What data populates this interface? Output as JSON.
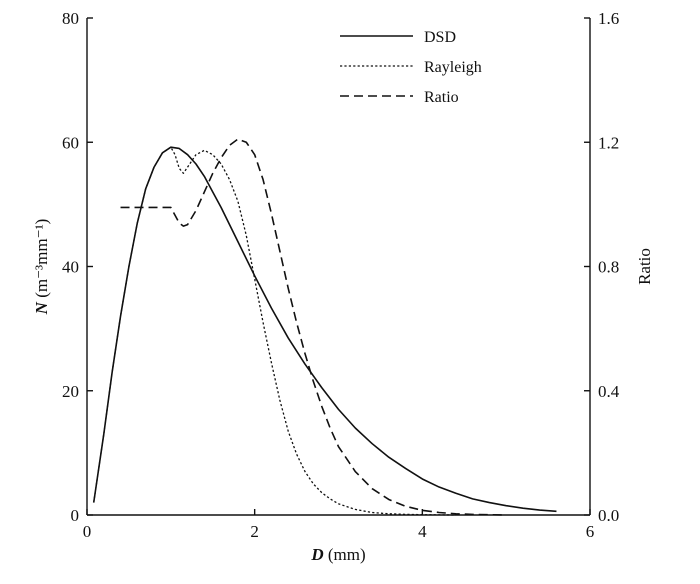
{
  "chart_data": {
    "type": "line",
    "xlabel": {
      "var": "D",
      "unit": "(mm)"
    },
    "ylabel_left": {
      "var": "N",
      "unit": "(m⁻³mm⁻¹)"
    },
    "ylabel_right": "Ratio",
    "xlim": [
      0,
      6
    ],
    "ylim_left": [
      0,
      80
    ],
    "ylim_right": [
      0,
      1.6
    ],
    "x_ticks": [
      "0",
      "2",
      "4",
      "6"
    ],
    "y_left_ticks": [
      "0",
      "20",
      "40",
      "60",
      "80"
    ],
    "y_right_ticks": [
      "0.0",
      "0.4",
      "0.8",
      "1.2",
      "1.6"
    ],
    "grid": false,
    "legend_position": "top-right",
    "series": [
      {
        "name": "DSD",
        "axis": "left",
        "style": "solid",
        "x": [
          0.08,
          0.2,
          0.3,
          0.4,
          0.5,
          0.6,
          0.7,
          0.8,
          0.9,
          1.0,
          1.1,
          1.2,
          1.3,
          1.4,
          1.5,
          1.6,
          1.8,
          2.0,
          2.2,
          2.4,
          2.6,
          2.8,
          3.0,
          3.2,
          3.4,
          3.6,
          3.8,
          4.0,
          4.2,
          4.4,
          4.6,
          4.8,
          5.0,
          5.2,
          5.4,
          5.6
        ],
        "y": [
          2,
          13,
          23,
          32,
          40,
          47,
          52.5,
          56,
          58.3,
          59.2,
          59,
          58,
          56.5,
          54.5,
          52,
          49.5,
          44,
          38.5,
          33.3,
          28.5,
          24.3,
          20.5,
          17,
          14,
          11.5,
          9.3,
          7.5,
          5.8,
          4.5,
          3.5,
          2.6,
          2,
          1.5,
          1.1,
          0.8,
          0.6
        ]
      },
      {
        "name": "Rayleigh",
        "axis": "left",
        "style": "dotted",
        "x": [
          0.08,
          0.2,
          0.3,
          0.4,
          0.5,
          0.6,
          0.7,
          0.8,
          0.9,
          1.0,
          1.05,
          1.1,
          1.15,
          1.2,
          1.3,
          1.4,
          1.5,
          1.6,
          1.7,
          1.8,
          1.9,
          2.0,
          2.1,
          2.2,
          2.3,
          2.4,
          2.5,
          2.6,
          2.7,
          2.8,
          2.9,
          3.0,
          3.2,
          3.4,
          3.6,
          3.8,
          4.0,
          4.2,
          4.4
        ],
        "y": [
          2,
          13,
          23,
          32,
          40,
          47,
          52.5,
          56,
          58.3,
          59.2,
          58,
          55.8,
          55,
          56,
          58,
          58.7,
          58,
          56.5,
          54,
          50.5,
          45,
          38,
          31,
          24.5,
          18.5,
          13.5,
          9.8,
          7,
          5,
          3.6,
          2.6,
          1.8,
          0.9,
          0.4,
          0.2,
          0.1,
          0.05,
          0.02,
          0
        ]
      },
      {
        "name": "Ratio",
        "axis": "right",
        "style": "dashed",
        "x": [
          0.4,
          0.6,
          0.8,
          1.0,
          1.05,
          1.1,
          1.15,
          1.2,
          1.3,
          1.4,
          1.5,
          1.6,
          1.7,
          1.8,
          1.9,
          2.0,
          2.1,
          2.2,
          2.3,
          2.4,
          2.5,
          2.6,
          2.7,
          2.8,
          2.9,
          3.0,
          3.2,
          3.4,
          3.6,
          3.8,
          4.0,
          4.2,
          4.4,
          4.6,
          4.8,
          5.0
        ],
        "y": [
          0.99,
          0.99,
          0.99,
          0.99,
          0.965,
          0.94,
          0.93,
          0.935,
          0.98,
          1.04,
          1.1,
          1.15,
          1.19,
          1.21,
          1.2,
          1.16,
          1.08,
          0.97,
          0.85,
          0.73,
          0.62,
          0.52,
          0.43,
          0.35,
          0.28,
          0.22,
          0.14,
          0.085,
          0.05,
          0.028,
          0.015,
          0.008,
          0.004,
          0.002,
          0.001,
          0
        ]
      }
    ]
  }
}
